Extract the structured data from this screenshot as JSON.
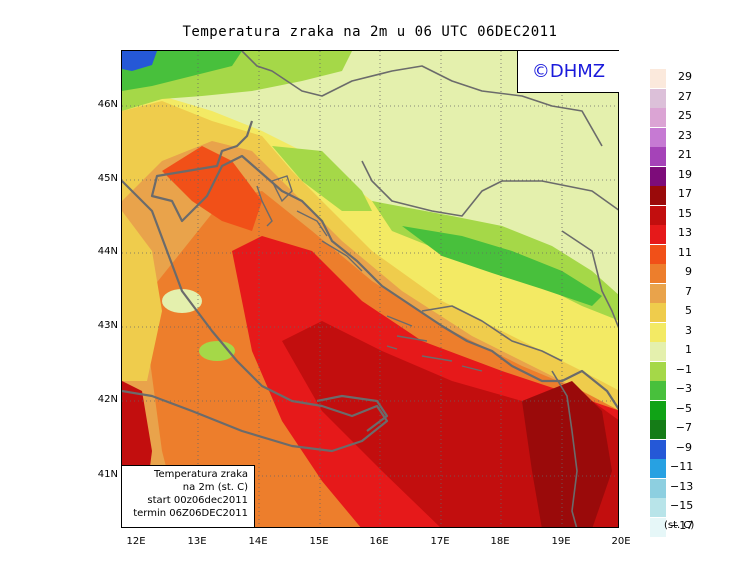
{
  "title": "Temperatura zraka na 2m u 06 UTC 06DEC2011",
  "badge": "©DHMZ",
  "info": {
    "line1": "Temperatura zraka",
    "line2": "na 2m (st. C)",
    "line3": "start 00z06dec2011",
    "line4": "termin 06Z06DEC2011"
  },
  "y_labels": [
    "46N",
    "45N",
    "44N",
    "43N",
    "42N",
    "41N"
  ],
  "x_labels": [
    "12E",
    "13E",
    "14E",
    "15E",
    "16E",
    "17E",
    "18E",
    "19E",
    "20E"
  ],
  "legend": {
    "unit": "(st. C)",
    "labels": [
      "29",
      "27",
      "25",
      "23",
      "21",
      "19",
      "17",
      "15",
      "13",
      "11",
      "9",
      "7",
      "5",
      "3",
      "1",
      "−1",
      "−3",
      "−5",
      "−7",
      "−9",
      "−11",
      "−13",
      "−15",
      "−17"
    ],
    "colors": [
      "#fbe9dc",
      "#dcc0d9",
      "#dba4d4",
      "#c67ad3",
      "#a543b8",
      "#7d0c7a",
      "#9a0a0a",
      "#c20e0e",
      "#e6191a",
      "#f15018",
      "#ed7e2c",
      "#e9a34b",
      "#efcc4c",
      "#f3ea64",
      "#e4f0ad",
      "#a5d848",
      "#48c03c",
      "#10a316",
      "#157c17",
      "#2558d7",
      "#27a1e2",
      "#8dcfe0",
      "#b8e4e9",
      "#e6f7f8"
    ]
  },
  "chart_data": {
    "type": "heatmap",
    "title": "Temperatura zraka na 2m u 06 UTC 06DEC2011",
    "variable": "Temperatura zraka na 2m (st. C)",
    "start": "00z06dec2011",
    "valid": "06Z06DEC2011",
    "x_range": [
      11.8,
      20.0
    ],
    "y_range": [
      40.3,
      46.8
    ],
    "x_ticks": [
      "12E",
      "13E",
      "14E",
      "15E",
      "16E",
      "17E",
      "18E",
      "19E",
      "20E"
    ],
    "y_ticks": [
      "46N",
      "45N",
      "44N",
      "43N",
      "42N",
      "41N"
    ],
    "scale_levels": [
      -17,
      -15,
      -13,
      -11,
      -9,
      -7,
      -5,
      -3,
      -1,
      1,
      3,
      5,
      7,
      9,
      11,
      13,
      15,
      17,
      19,
      21,
      23,
      25,
      27,
      29
    ],
    "grid": true
  }
}
